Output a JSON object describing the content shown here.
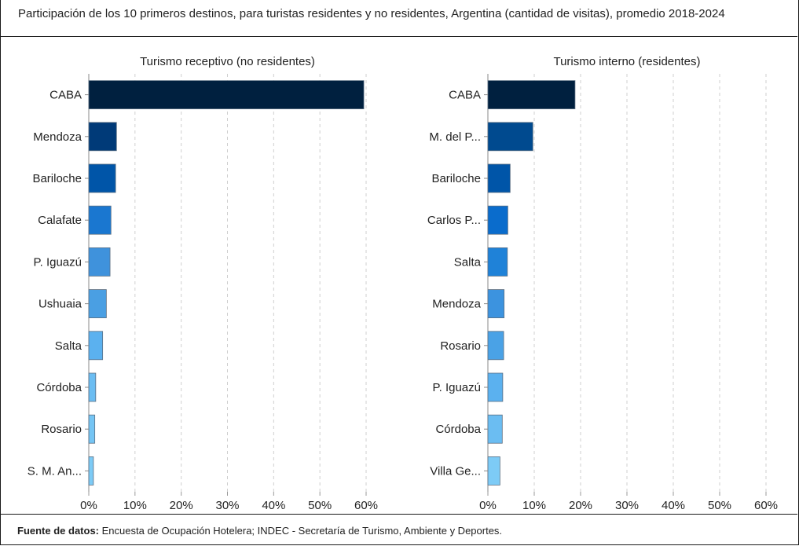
{
  "header": {
    "title": "Participación de los 10 primeros destinos, para turistas residentes y no residentes, Argentina (cantidad de visitas), promedio 2018-2024"
  },
  "footer": {
    "source_label": "Fuente de datos:",
    "source_text": "Encuesta de Ocupación Hotelera; INDEC - Secretaría de Turismo, Ambiente y Deportes."
  },
  "chart_data": [
    {
      "type": "bar",
      "orientation": "horizontal",
      "title": "Turismo receptivo (no residentes)",
      "categories": [
        "CABA",
        "Mendoza",
        "Bariloche",
        "Calafate",
        "P. Iguazú",
        "Ushuaia",
        "Salta",
        "Córdoba",
        "Rosario",
        "S. M. An..."
      ],
      "values": [
        59.5,
        6.0,
        5.8,
        4.8,
        4.6,
        3.8,
        3.0,
        1.5,
        1.3,
        1.0
      ],
      "colors": [
        "#00203f",
        "#003a78",
        "#0055a8",
        "#1a77d0",
        "#3f92dc",
        "#4a9fe3",
        "#5bb1ef",
        "#6bbdf2",
        "#75c5f4",
        "#7dcbf6"
      ],
      "xlim": [
        0,
        60
      ],
      "ticks": [
        "0%",
        "10%",
        "20%",
        "30%",
        "40%",
        "50%",
        "60%"
      ],
      "xlabel": "",
      "ylabel": "",
      "grid": "vertical-dashed"
    },
    {
      "type": "bar",
      "orientation": "horizontal",
      "title": "Turismo interno (residentes)",
      "categories": [
        "CABA",
        "M. del P...",
        "Bariloche",
        "Carlos P...",
        "Salta",
        "Mendoza",
        "Rosario",
        "P. Iguazú",
        "Córdoba",
        "Villa Ge..."
      ],
      "values": [
        18.8,
        9.7,
        4.8,
        4.3,
        4.2,
        3.5,
        3.4,
        3.2,
        3.1,
        2.6
      ],
      "colors": [
        "#00203f",
        "#004a8f",
        "#0055a8",
        "#0a6ccc",
        "#1f82d8",
        "#3c93df",
        "#4aa2e6",
        "#5bb1ef",
        "#6bbdf2",
        "#7dcbf6"
      ],
      "xlim": [
        0,
        60
      ],
      "ticks": [
        "0%",
        "10%",
        "20%",
        "30%",
        "40%",
        "50%",
        "60%"
      ],
      "xlabel": "",
      "ylabel": "",
      "grid": "vertical-dashed"
    }
  ]
}
